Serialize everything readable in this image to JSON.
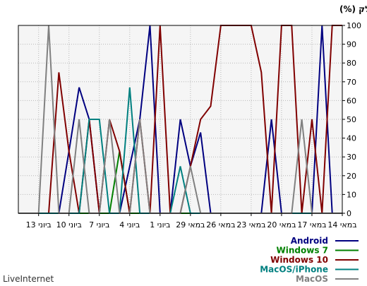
{
  "chart_data": {
    "type": "line",
    "ylabel": "(%) חלק",
    "ylim": [
      0,
      100
    ],
    "yticks": [
      0,
      10,
      20,
      30,
      40,
      50,
      60,
      70,
      80,
      90,
      100
    ],
    "x_count": 33,
    "x_tick_labels": [
      "14 במאי",
      "17 במאי",
      "20 במאי",
      "23 במאי",
      "26 במאי",
      "29 במאי",
      "1 ביוני",
      "4 ביוני",
      "7 ביוני",
      "10 ביוני",
      "13 ביוני"
    ],
    "x_tick_positions": [
      0,
      3,
      6,
      9,
      12,
      15,
      18,
      21,
      24,
      27,
      30
    ],
    "grid": true,
    "legend_placement": "bottom-right",
    "series": [
      {
        "name": "Android",
        "color": "#000080",
        "values": [
          0,
          0,
          100,
          0,
          0,
          0,
          0,
          50,
          0,
          0,
          0,
          0,
          0,
          0,
          43,
          25,
          50,
          0,
          0,
          100,
          50,
          25,
          0,
          0,
          0,
          50,
          67,
          33,
          0,
          0,
          0,
          0,
          0
        ]
      },
      {
        "name": "Windows 7",
        "color": "#008000",
        "values": [
          0,
          0,
          0,
          0,
          0,
          0,
          0,
          0,
          0,
          0,
          0,
          0,
          0,
          0,
          0,
          0,
          0,
          0,
          0,
          0,
          0,
          0,
          33,
          0,
          0,
          0,
          0,
          0,
          0,
          0,
          0,
          0,
          0
        ]
      },
      {
        "name": "Windows 10",
        "color": "#800000",
        "values": [
          100,
          100,
          0,
          50,
          0,
          100,
          100,
          0,
          75,
          100,
          100,
          100,
          100,
          57,
          50,
          25,
          0,
          0,
          100,
          0,
          50,
          0,
          33,
          50,
          0,
          50,
          0,
          33,
          75,
          0,
          0,
          0,
          0
        ]
      },
      {
        "name": "MacOS/iPhone",
        "color": "#008080",
        "values": [
          0,
          0,
          0,
          0,
          0,
          0,
          0,
          0,
          0,
          0,
          0,
          0,
          0,
          0,
          0,
          0,
          25,
          0,
          0,
          0,
          0,
          67,
          0,
          0,
          50,
          50,
          0,
          0,
          0,
          0,
          0,
          0,
          0
        ]
      },
      {
        "name": "MacOS",
        "color": "#808080",
        "values": [
          0,
          0,
          0,
          0,
          50,
          0,
          0,
          0,
          0,
          0,
          0,
          0,
          0,
          0,
          0,
          25,
          0,
          0,
          0,
          0,
          50,
          0,
          0,
          50,
          0,
          0,
          50,
          0,
          0,
          100,
          0,
          0,
          0
        ]
      }
    ]
  },
  "footer": {
    "brand": "LiveInternet"
  }
}
